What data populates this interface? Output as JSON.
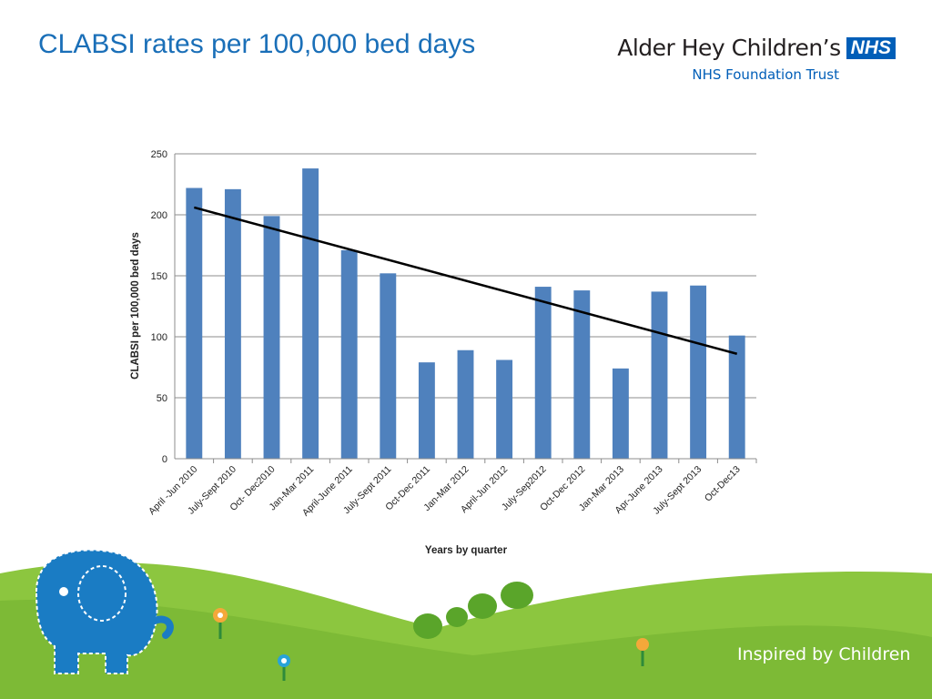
{
  "slide": {
    "title": "CLABSI rates per 100,000 bed days",
    "tagline": "Inspired by Children"
  },
  "logo": {
    "org_name": "Alder Hey Children’s",
    "nhs_mark": "NHS",
    "subtitle": "NHS  Foundation Trust"
  },
  "colors": {
    "title": "#1a6fb8",
    "bar": "#4f81bd",
    "trendline": "#000000",
    "grass": "#8cc63f",
    "elephant": "#1a7cc4"
  },
  "chart_data": {
    "type": "bar",
    "categories": [
      "April -Jun 2010",
      "July-Sept 2010",
      "Oct- Dec2010",
      "Jan-Mar 2011",
      "April-June 2011",
      "July-Sept 2011",
      "Oct-Dec 2011",
      "Jan-Mar 2012",
      "April-Jun 2012",
      "July-Sep2012",
      "Oct-Dec 2012",
      "Jan-Mar 2013",
      "Apr-June 2013",
      "July-Sept 2013",
      "Oct-Dec13"
    ],
    "values": [
      222,
      221,
      199,
      238,
      171,
      152,
      79,
      89,
      81,
      141,
      138,
      74,
      137,
      142,
      101
    ],
    "trendline": {
      "type": "linear",
      "start": 206,
      "end": 86
    },
    "xlabel": "Years by quarter",
    "ylabel": "CLABSI per 100,000 bed days",
    "ylim": [
      0,
      250
    ],
    "yticks": [
      0,
      50,
      100,
      150,
      200,
      250
    ],
    "grid": true,
    "legend": "none"
  }
}
